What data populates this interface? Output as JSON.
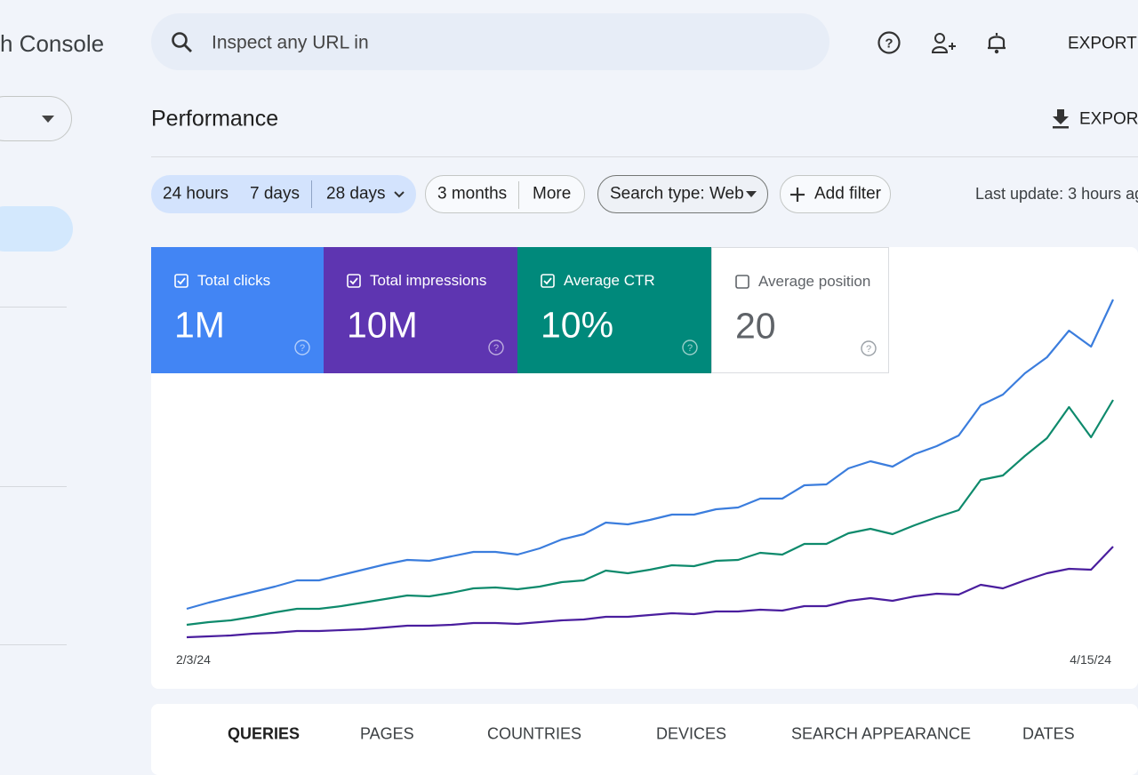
{
  "header": {
    "title": "h Console",
    "search_placeholder": "Inspect any URL in",
    "export": "EXPORT"
  },
  "page": {
    "title": "Performance",
    "export": "EXPORT"
  },
  "filters": {
    "date_group": [
      "24 hours",
      "7 days",
      "28 days"
    ],
    "range_group": [
      "3 months",
      "More"
    ],
    "search_type": "Search type: Web",
    "add_filter": "Add filter",
    "last_update": "Last update: 3 hours ag"
  },
  "metrics": [
    {
      "label": "Total clicks",
      "value": "1M",
      "color": "#4285f4",
      "checked": true
    },
    {
      "label": "Total impressions",
      "value": "10M",
      "color": "#5e35b1",
      "checked": true
    },
    {
      "label": "Average CTR",
      "value": "10%",
      "color": "#00897b",
      "checked": true
    },
    {
      "label": "Average position",
      "value": "20",
      "color": "#ffffff",
      "checked": false
    }
  ],
  "chart_data": {
    "type": "line",
    "categories": [
      "2/3/24",
      null,
      null,
      null,
      null,
      null,
      null,
      null,
      null,
      null,
      null,
      null,
      null,
      null,
      null,
      null,
      null,
      null,
      null,
      null,
      null,
      null,
      null,
      null,
      null,
      null,
      null,
      null,
      null,
      null,
      null,
      null,
      null,
      null,
      null,
      null,
      null,
      null,
      null,
      null,
      null,
      null,
      "4/15/24"
    ],
    "series": [
      {
        "color": "#3b7ddd",
        "values": [
          45,
          52,
          58,
          64,
          70,
          77,
          77,
          83,
          89,
          95,
          100,
          99,
          104,
          109,
          109,
          106,
          113,
          123,
          129,
          142,
          140,
          145,
          151,
          151,
          157,
          159,
          169,
          169,
          184,
          185,
          203,
          211,
          205,
          219,
          228,
          240,
          274,
          286,
          310,
          328,
          358,
          340,
          393
        ]
      },
      {
        "color": "#0e8a6c",
        "values": [
          27,
          30,
          32,
          36,
          41,
          45,
          45,
          48,
          52,
          56,
          60,
          59,
          63,
          68,
          69,
          67,
          70,
          75,
          77,
          88,
          85,
          89,
          94,
          93,
          99,
          100,
          108,
          106,
          118,
          118,
          130,
          135,
          129,
          139,
          148,
          156,
          190,
          195,
          217,
          237,
          272,
          238,
          280
        ]
      },
      {
        "color": "#4a1e9e",
        "values": [
          13,
          14,
          15,
          17,
          18,
          20,
          20,
          21,
          22,
          24,
          26,
          26,
          27,
          29,
          29,
          28,
          30,
          32,
          33,
          36,
          36,
          38,
          40,
          39,
          42,
          42,
          44,
          43,
          48,
          48,
          54,
          57,
          54,
          59,
          62,
          61,
          72,
          68,
          77,
          85,
          90,
          89,
          115
        ]
      }
    ]
  },
  "tabs": [
    "QUERIES",
    "PAGES",
    "COUNTRIES",
    "DEVICES",
    "SEARCH APPEARANCE",
    "DATES"
  ]
}
